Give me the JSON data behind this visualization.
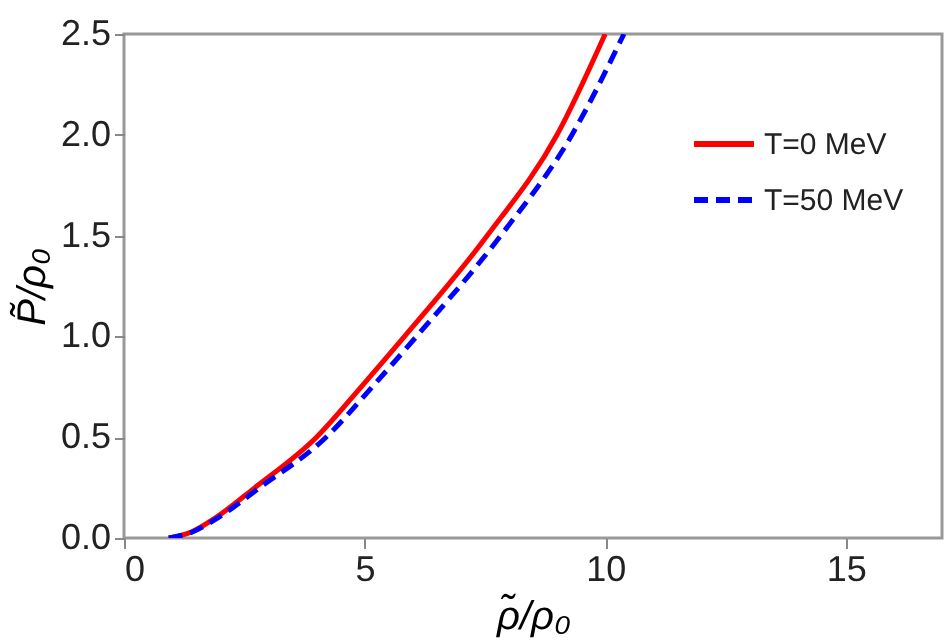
{
  "chart_data": {
    "type": "line",
    "xlabel": "ρ̃/ρ₀",
    "ylabel": "P̃/ρ₀",
    "xlim": [
      0,
      17
    ],
    "ylim": [
      0,
      2.5
    ],
    "xticks": [
      0,
      5,
      10,
      15
    ],
    "yticks": [
      {
        "value": 0,
        "label": "0.0"
      },
      0.5,
      {
        "value": 1,
        "label": "1.0"
      },
      1.5,
      {
        "value": 2,
        "label": "2.0"
      },
      2.5
    ],
    "grid": false,
    "legend": "top right",
    "marker": "none",
    "series": [
      {
        "name": "T=0 MeV",
        "color": "#ff0000",
        "line_style": "solid",
        "x": [
          0.93,
          1.4,
          1.9,
          2.72,
          4.0,
          4.93,
          5.83,
          7.55,
          9.0,
          10.0
        ],
        "values": [
          0,
          0.03,
          0.1,
          0.25,
          0.5,
          0.75,
          1.0,
          1.5,
          2.0,
          2.5
        ]
      },
      {
        "name": "T=50 MeV",
        "color": "#0000ff",
        "line_style": "dashed",
        "x": [
          0.93,
          1.42,
          1.95,
          2.82,
          4.2,
          5.16,
          6.08,
          7.83,
          9.31,
          10.39
        ],
        "values": [
          0,
          0.03,
          0.1,
          0.25,
          0.5,
          0.75,
          1.0,
          1.5,
          2.0,
          2.5
        ]
      }
    ]
  }
}
